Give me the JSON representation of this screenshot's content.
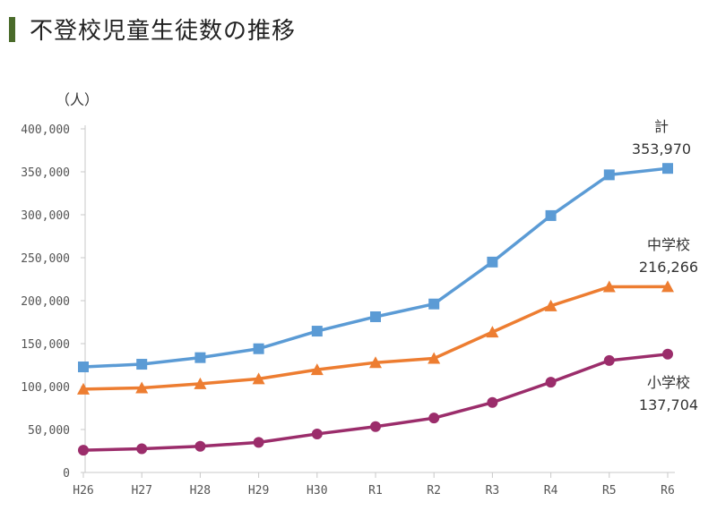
{
  "page": {
    "title": "不登校児童生徒数の推移"
  },
  "chart_data": {
    "type": "line",
    "title": "不登校児童生徒数の推移",
    "ylabel": "（人）",
    "xlabel": "",
    "categories": [
      "H26",
      "H27",
      "H28",
      "H29",
      "H30",
      "R1",
      "R2",
      "R3",
      "R4",
      "R5",
      "R6"
    ],
    "ylim": [
      0,
      400000
    ],
    "yticks": [
      0,
      50000,
      100000,
      150000,
      200000,
      250000,
      300000,
      350000,
      400000
    ],
    "ytick_labels": [
      "0",
      "50,000",
      "100,000",
      "150,000",
      "200,000",
      "250,000",
      "300,000",
      "350,000",
      "400,000"
    ],
    "grid": false,
    "legend": "end-labels",
    "series": [
      {
        "name": "計",
        "end_value_label": "353,970",
        "color": "#5b9bd5",
        "marker": "square",
        "values": [
          122897,
          125991,
          133683,
          144031,
          164528,
          181272,
          196127,
          244940,
          299048,
          346482,
          353970
        ]
      },
      {
        "name": "中学校",
        "end_value_label": "216,266",
        "color": "#ed7d31",
        "marker": "triangle",
        "values": [
          97033,
          98408,
          103235,
          108999,
          119687,
          127922,
          132777,
          163442,
          193936,
          216112,
          216266
        ]
      },
      {
        "name": "小学校",
        "end_value_label": "137,704",
        "color": "#9b2d6b",
        "marker": "circle",
        "values": [
          25864,
          27583,
          30448,
          35032,
          44841,
          53350,
          63350,
          81498,
          105112,
          130370,
          137704
        ]
      }
    ]
  }
}
